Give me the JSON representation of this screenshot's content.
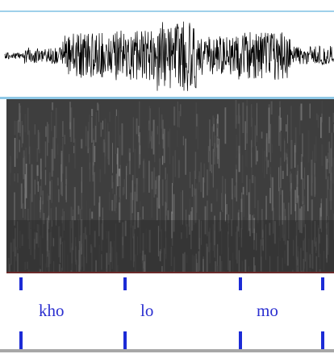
{
  "tier": {
    "labels": [
      "kho",
      "lo",
      "mo"
    ]
  },
  "colors": {
    "waveform": "#000000",
    "wave_border": "#9fd0ea",
    "spectrogram_bg": "#3e3e3e",
    "boundary": "#1c2bd6",
    "label_text": "#2b2fd0"
  }
}
